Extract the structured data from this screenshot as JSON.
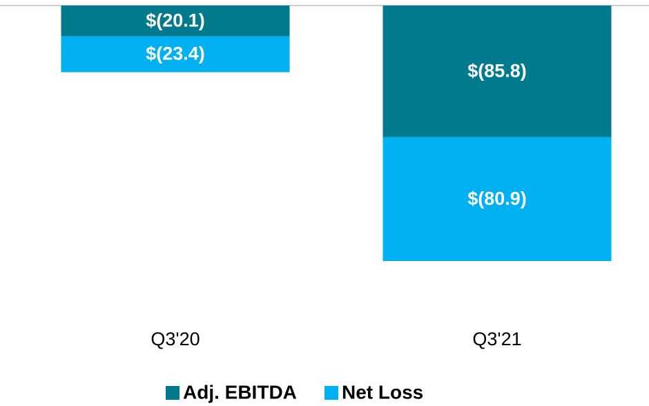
{
  "chart_data": {
    "type": "stacked-bar",
    "categories": [
      "Q3'20",
      "Q3'21"
    ],
    "series": [
      {
        "name": "Adj. EBITDA",
        "color": "#007a8c",
        "values": [
          -20.1,
          -85.8
        ],
        "value_labels": [
          "$(20.1)",
          "$(85.8)"
        ]
      },
      {
        "name": "Net Loss",
        "color": "#00b0f0",
        "values": [
          -23.4,
          -80.9
        ],
        "value_labels": [
          "$(23.4)",
          "$(80.9)"
        ]
      }
    ],
    "ylim": [
      -200,
      0
    ]
  }
}
